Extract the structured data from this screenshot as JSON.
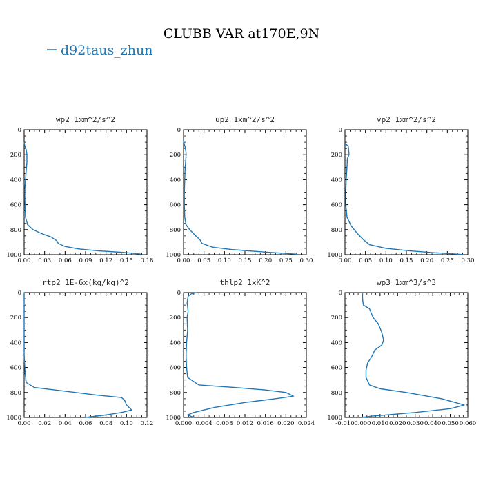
{
  "figure": {
    "title": "CLUBB VAR at170E,9N",
    "legend": {
      "label": "d92taus_zhun",
      "color": "#1f77b4"
    }
  },
  "chart_data": [
    {
      "type": "line",
      "title": "wp2  1xm^2/s^2",
      "xlim": [
        0,
        0.18
      ],
      "ylim": [
        1000,
        0
      ],
      "xticks": [
        "0.00",
        "0.03",
        "0.06",
        "0.09",
        "0.12",
        "0.15",
        "0.18"
      ],
      "yticks": [
        "0",
        "200",
        "400",
        "600",
        "800",
        "1000"
      ],
      "series": [
        {
          "name": "d92taus_zhun",
          "x": [
            0.0,
            0.001,
            0.003,
            0.004,
            0.004,
            0.003,
            0.002,
            0.001,
            0.001,
            0.002,
            0.005,
            0.013,
            0.025,
            0.04,
            0.048,
            0.05,
            0.06,
            0.08,
            0.11,
            0.145,
            0.17,
            0.172
          ],
          "y": [
            100,
            130,
            160,
            200,
            260,
            330,
            400,
            480,
            560,
            700,
            760,
            800,
            830,
            860,
            890,
            910,
            935,
            955,
            970,
            982,
            995,
            1000
          ]
        }
      ]
    },
    {
      "type": "line",
      "title": "up2  1xm^2/s^2",
      "xlim": [
        0,
        0.3
      ],
      "ylim": [
        1000,
        0
      ],
      "xticks": [
        "0.00",
        "0.05",
        "0.10",
        "0.15",
        "0.20",
        "0.25",
        "0.30"
      ],
      "yticks": [
        "0",
        "200",
        "400",
        "600",
        "800",
        "1000"
      ],
      "series": [
        {
          "name": "d92taus_zhun",
          "x": [
            0.0,
            0.004,
            0.006,
            0.006,
            0.004,
            0.003,
            0.002,
            0.002,
            0.003,
            0.006,
            0.015,
            0.03,
            0.04,
            0.045,
            0.07,
            0.12,
            0.18,
            0.24,
            0.27,
            0.28
          ],
          "y": [
            90,
            140,
            180,
            220,
            300,
            400,
            500,
            600,
            700,
            760,
            800,
            850,
            880,
            910,
            940,
            960,
            975,
            988,
            995,
            1000
          ]
        }
      ]
    },
    {
      "type": "line",
      "title": "vp2  1xm^2/s^2",
      "xlim": [
        0,
        0.3
      ],
      "ylim": [
        1000,
        0
      ],
      "xticks": [
        "0.00",
        "0.05",
        "0.10",
        "0.15",
        "0.20",
        "0.25",
        "0.30"
      ],
      "yticks": [
        "0",
        "200",
        "400",
        "600",
        "800",
        "1000"
      ],
      "series": [
        {
          "name": "d92taus_zhun",
          "x": [
            0.0,
            0.008,
            0.01,
            0.006,
            0.005,
            0.003,
            0.002,
            0.002,
            0.005,
            0.015,
            0.03,
            0.045,
            0.06,
            0.1,
            0.16,
            0.22,
            0.27,
            0.29
          ],
          "y": [
            110,
            130,
            200,
            230,
            300,
            400,
            500,
            600,
            700,
            770,
            830,
            880,
            920,
            950,
            970,
            985,
            995,
            1000
          ]
        }
      ]
    },
    {
      "type": "line",
      "title": "rtp2  1E-6x(kg/kg)^2",
      "xlim": [
        0,
        0.12
      ],
      "ylim": [
        1000,
        0
      ],
      "xticks": [
        "0.00",
        "0.02",
        "0.04",
        "0.06",
        "0.08",
        "0.10",
        "0.12"
      ],
      "yticks": [
        "0",
        "200",
        "400",
        "600",
        "800",
        "1000"
      ],
      "series": [
        {
          "name": "d92taus_zhun",
          "x": [
            0.0,
            0.0,
            0.001,
            0.002,
            0.01,
            0.04,
            0.07,
            0.095,
            0.098,
            0.1,
            0.105,
            0.095,
            0.08,
            0.06
          ],
          "y": [
            0,
            500,
            650,
            720,
            760,
            790,
            820,
            840,
            860,
            900,
            940,
            960,
            980,
            1000
          ]
        }
      ]
    },
    {
      "type": "line",
      "title": "thlp2  1xK^2",
      "xlim": [
        0,
        0.024
      ],
      "ylim": [
        1000,
        0
      ],
      "xticks": [
        "0.000",
        "0.004",
        "0.008",
        "0.012",
        "0.016",
        "0.020",
        "0.024"
      ],
      "yticks": [
        "0",
        "200",
        "400",
        "600",
        "800",
        "1000"
      ],
      "series": [
        {
          "name": "d92taus_zhun",
          "x": [
            0.0025,
            0.0015,
            0.0009,
            0.0007,
            0.0009,
            0.0007,
            0.0008,
            0.0006,
            0.0005,
            0.0006,
            0.0008,
            0.003,
            0.01,
            0.016,
            0.02,
            0.0215,
            0.018,
            0.012,
            0.006,
            0.002,
            0.0008,
            0.002
          ],
          "y": [
            0,
            10,
            30,
            80,
            150,
            200,
            300,
            400,
            500,
            600,
            680,
            740,
            760,
            780,
            800,
            830,
            850,
            880,
            920,
            960,
            980,
            1000
          ]
        }
      ]
    },
    {
      "type": "line",
      "title": "wp3  1xm^3/s^3",
      "xlim": [
        -0.01,
        0.06
      ],
      "ylim": [
        1000,
        0
      ],
      "xticks": [
        "-0.010",
        "0.000",
        "0.010",
        "0.020",
        "0.030",
        "0.040",
        "0.050",
        "0.060"
      ],
      "yticks": [
        "0",
        "200",
        "400",
        "600",
        "800",
        "1000"
      ],
      "series": [
        {
          "name": "d92taus_zhun",
          "x": [
            0.0,
            0.0,
            0.0005,
            0.004,
            0.006,
            0.009,
            0.011,
            0.012,
            0.011,
            0.007,
            0.005,
            0.003,
            0.002,
            0.002,
            0.004,
            0.01,
            0.025,
            0.045,
            0.058,
            0.05,
            0.03,
            0.005,
            0.0
          ],
          "y": [
            0,
            50,
            100,
            130,
            200,
            250,
            320,
            380,
            420,
            460,
            520,
            560,
            620,
            680,
            740,
            770,
            800,
            850,
            900,
            930,
            960,
            990,
            1000
          ]
        }
      ]
    }
  ]
}
